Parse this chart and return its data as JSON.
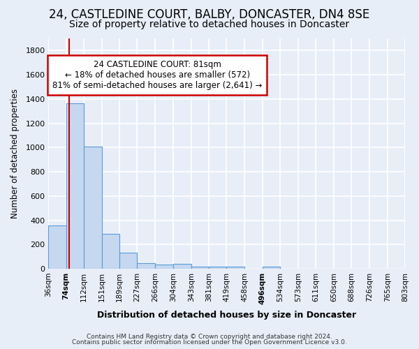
{
  "title1": "24, CASTLEDINE COURT, BALBY, DONCASTER, DN4 8SE",
  "title2": "Size of property relative to detached houses in Doncaster",
  "xlabel": "Distribution of detached houses by size in Doncaster",
  "ylabel": "Number of detached properties",
  "bin_labels": [
    "36sqm",
    "74sqm",
    "112sqm",
    "151sqm",
    "189sqm",
    "227sqm",
    "266sqm",
    "304sqm",
    "343sqm",
    "381sqm",
    "419sqm",
    "458sqm",
    "496sqm",
    "534sqm",
    "573sqm",
    "611sqm",
    "650sqm",
    "688sqm",
    "726sqm",
    "765sqm",
    "803sqm"
  ],
  "bin_edges": [
    36,
    74,
    112,
    151,
    189,
    227,
    266,
    304,
    343,
    381,
    419,
    458,
    496,
    534,
    573,
    611,
    650,
    688,
    726,
    765,
    803
  ],
  "bar_heights": [
    355,
    1365,
    1010,
    290,
    130,
    45,
    35,
    40,
    20,
    20,
    15,
    0,
    20,
    0,
    0,
    0,
    0,
    0,
    0,
    0
  ],
  "bar_color": "#c5d8f0",
  "bar_edge_color": "#5b9bd5",
  "property_size": 81,
  "red_line_color": "#cc0000",
  "annotation_line1": "24 CASTLEDINE COURT: 81sqm",
  "annotation_line2": "← 18% of detached houses are smaller (572)",
  "annotation_line3": "81% of semi-detached houses are larger (2,641) →",
  "annotation_box_color": "#ffffff",
  "annotation_box_edge": "#cc0000",
  "ylim": [
    0,
    1900
  ],
  "yticks": [
    0,
    200,
    400,
    600,
    800,
    1000,
    1200,
    1400,
    1600,
    1800
  ],
  "footer1": "Contains HM Land Registry data © Crown copyright and database right 2024.",
  "footer2": "Contains public sector information licensed under the Open Government Licence v3.0.",
  "bg_color": "#e8eef8",
  "grid_color": "#ffffff",
  "title_fontsize": 12,
  "subtitle_fontsize": 10,
  "bold_tick_indices": [
    1,
    12
  ]
}
